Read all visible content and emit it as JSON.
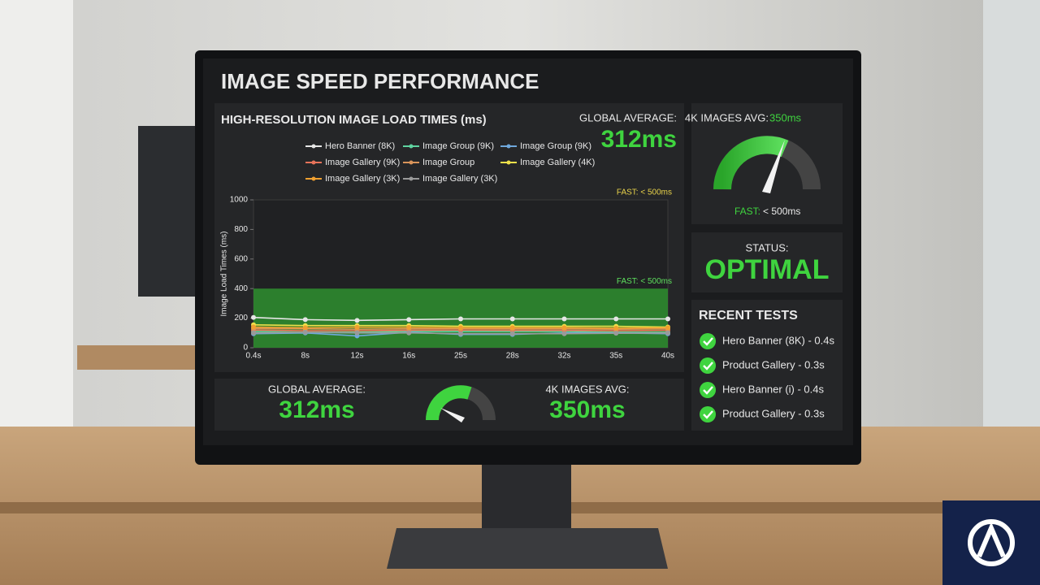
{
  "header": {
    "title": "IMAGE SPEED PERFORMANCE"
  },
  "chart_data": {
    "type": "line",
    "title": "HIGH-RESOLUTION IMAGE LOAD TIMES (ms)",
    "y_label": "Image Load Times (ms)",
    "categories": [
      "0.4s",
      "8s",
      "12s",
      "16s",
      "25s",
      "28s",
      "32s",
      "35s",
      "40s"
    ],
    "ylim": [
      0,
      1000
    ],
    "yticks": [
      0,
      200,
      400,
      600,
      800,
      1000
    ],
    "fast_band": [
      0,
      400
    ],
    "annotations": [
      "FAST: < 500ms",
      "FAST: < 500ms"
    ],
    "series": [
      {
        "name": "Hero Banner (8K)",
        "color": "#e6e6e6",
        "values": [
          205,
          190,
          185,
          190,
          195,
          195,
          195,
          195,
          195
        ]
      },
      {
        "name": "Image Group (9K)",
        "color": "#5fd3a0",
        "values": [
          110,
          105,
          105,
          110,
          110,
          110,
          110,
          105,
          105
        ]
      },
      {
        "name": "Image Group (9K)",
        "color": "#6fa8dc",
        "values": [
          95,
          100,
          80,
          105,
          90,
          90,
          100,
          100,
          95
        ]
      },
      {
        "name": "Image Gallery (9K)",
        "color": "#e8735a",
        "values": [
          120,
          115,
          115,
          118,
          120,
          118,
          118,
          115,
          118
        ]
      },
      {
        "name": "Image Group",
        "color": "#d9945a",
        "values": [
          130,
          128,
          125,
          128,
          130,
          128,
          128,
          125,
          128
        ]
      },
      {
        "name": "Image Gallery (4K)",
        "color": "#f0e04a",
        "values": [
          155,
          150,
          150,
          150,
          145,
          145,
          145,
          145,
          140
        ]
      },
      {
        "name": "Image Gallery (3K)",
        "color": "#f0a030",
        "values": [
          140,
          135,
          138,
          138,
          135,
          135,
          135,
          132,
          135
        ]
      },
      {
        "name": "Image Gallery (3K)",
        "color": "#9a9a9a",
        "values": [
          100,
          105,
          100,
          100,
          95,
          95,
          95,
          98,
          100
        ]
      }
    ]
  },
  "chart_summary": {
    "label": "GLOBAL AVERAGE:",
    "value": "312ms"
  },
  "gauge_panel": {
    "label": "4K IMAGES AVG:",
    "value": "350ms",
    "caption_label": "FAST:",
    "caption_value": "< 500ms"
  },
  "status": {
    "label": "STATUS:",
    "value": "OPTIMAL"
  },
  "recent_tests": {
    "title": "RECENT TESTS",
    "items": [
      "Hero Banner (8K) - 0.4s",
      "Product Gallery - 0.3s",
      "Hero Banner (i) - 0.4s",
      "Product Gallery - 0.3s"
    ]
  },
  "bottom_bar": {
    "left_label": "GLOBAL AVERAGE:",
    "left_value": "312ms",
    "right_label": "4K IMAGES AVG:",
    "right_value": "350ms"
  }
}
